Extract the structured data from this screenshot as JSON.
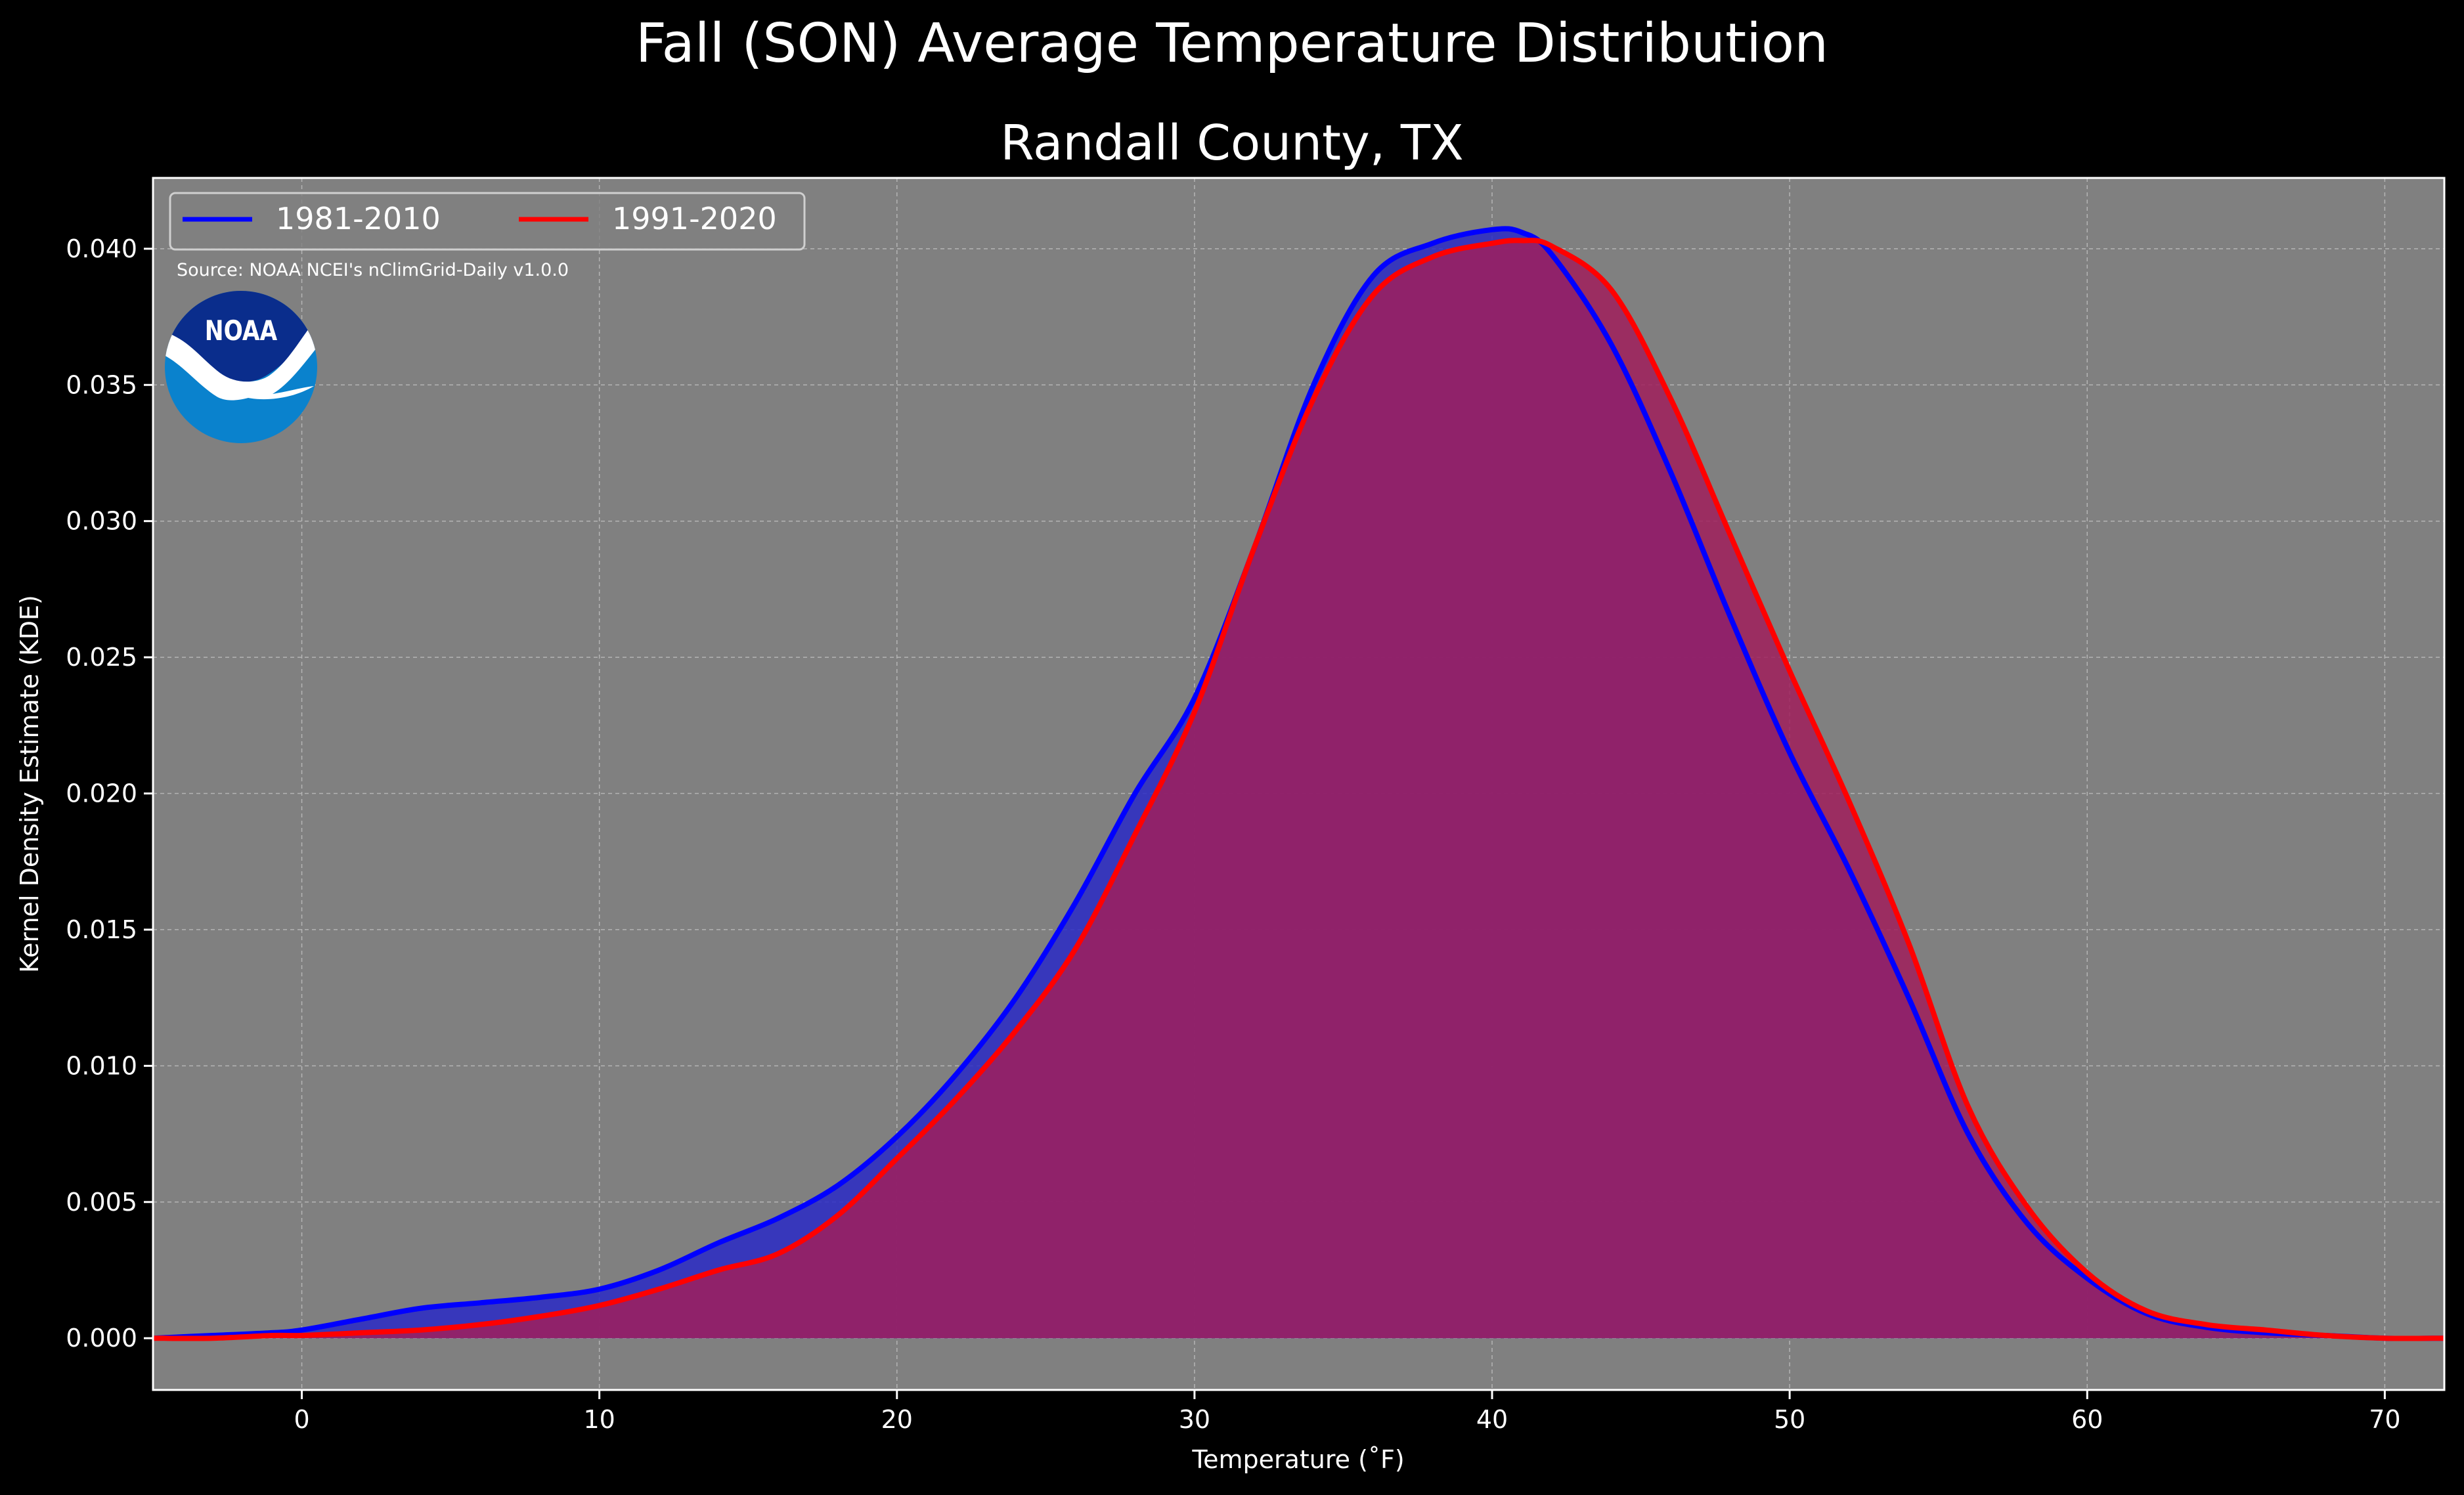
{
  "figure": {
    "title": "Fall (SON) Average Temperature Distribution",
    "subtitle": "Randall County, TX",
    "source_note": "Source: NOAA NCEI's nClimGrid-Daily v1.0.0",
    "logo_text": "NOAA"
  },
  "colors": {
    "background": "#000000",
    "plot_background": "#808080",
    "series_1981": "#0000ff",
    "series_1991": "#ff0000",
    "fill_1981": "#2a2ac6",
    "fill_1991": "#a01e5c",
    "text": "#ffffff",
    "noaa_dark": "#0a2d8c",
    "noaa_light": "#0a82cd"
  },
  "chart_data": {
    "type": "area",
    "title": "Fall (SON) Average Temperature Distribution",
    "subtitle": "Randall County, TX",
    "xlabel": "Temperature (˚F)",
    "ylabel": "Kernel Density Estimate (KDE)",
    "xlim": [
      -5,
      72
    ],
    "ylim": [
      -0.0019,
      0.0426
    ],
    "xticks": [
      0,
      10,
      20,
      30,
      40,
      50,
      60,
      70
    ],
    "xtick_labels": [
      "0",
      "10",
      "20",
      "30",
      "40",
      "50",
      "60",
      "70"
    ],
    "yticks": [
      0,
      0.005,
      0.01,
      0.015,
      0.02,
      0.025,
      0.03,
      0.035,
      0.04
    ],
    "ytick_labels": [
      "0.000",
      "0.005",
      "0.010",
      "0.015",
      "0.020",
      "0.025",
      "0.030",
      "0.035",
      "0.040"
    ],
    "grid": true,
    "legend_position": "top-left",
    "series": [
      {
        "name": "1981-2010",
        "x": [
          -5,
          -3,
          -1,
          0,
          2,
          4,
          6,
          8,
          10,
          12,
          14,
          16,
          18,
          20,
          22,
          24,
          26,
          28,
          30,
          32,
          34,
          36,
          38,
          40,
          41,
          42,
          44,
          46,
          48,
          50,
          52,
          54,
          56,
          58,
          60,
          62,
          64,
          66,
          68,
          70,
          72
        ],
        "y": [
          0.0,
          0.0001,
          0.0002,
          0.0003,
          0.0007,
          0.0011,
          0.0013,
          0.0015,
          0.0018,
          0.0025,
          0.0035,
          0.0044,
          0.0056,
          0.0074,
          0.0097,
          0.0125,
          0.016,
          0.02,
          0.0235,
          0.029,
          0.035,
          0.039,
          0.0402,
          0.0407,
          0.0406,
          0.0398,
          0.0365,
          0.0318,
          0.0265,
          0.0215,
          0.0172,
          0.0125,
          0.0075,
          0.0042,
          0.0022,
          0.0009,
          0.0004,
          0.0002,
          0.0001,
          0.0,
          0.0
        ]
      },
      {
        "name": "1991-2020",
        "x": [
          -5,
          -3,
          -1,
          0,
          2,
          4,
          6,
          8,
          10,
          12,
          14,
          16,
          18,
          20,
          22,
          24,
          26,
          28,
          30,
          32,
          34,
          36,
          38,
          40,
          41,
          42,
          44,
          46,
          48,
          50,
          52,
          54,
          56,
          58,
          60,
          62,
          64,
          66,
          68,
          70,
          72
        ],
        "y": [
          0.0,
          0.0,
          0.0001,
          0.0001,
          0.0002,
          0.0003,
          0.0005,
          0.0008,
          0.0012,
          0.0018,
          0.0025,
          0.0031,
          0.0045,
          0.0066,
          0.0088,
          0.0113,
          0.0143,
          0.0185,
          0.023,
          0.029,
          0.0345,
          0.0383,
          0.0397,
          0.0402,
          0.0403,
          0.0401,
          0.0385,
          0.0345,
          0.0295,
          0.0245,
          0.0197,
          0.0145,
          0.0085,
          0.0048,
          0.0024,
          0.001,
          0.0005,
          0.0003,
          0.0001,
          0.0,
          0.0
        ]
      }
    ]
  }
}
